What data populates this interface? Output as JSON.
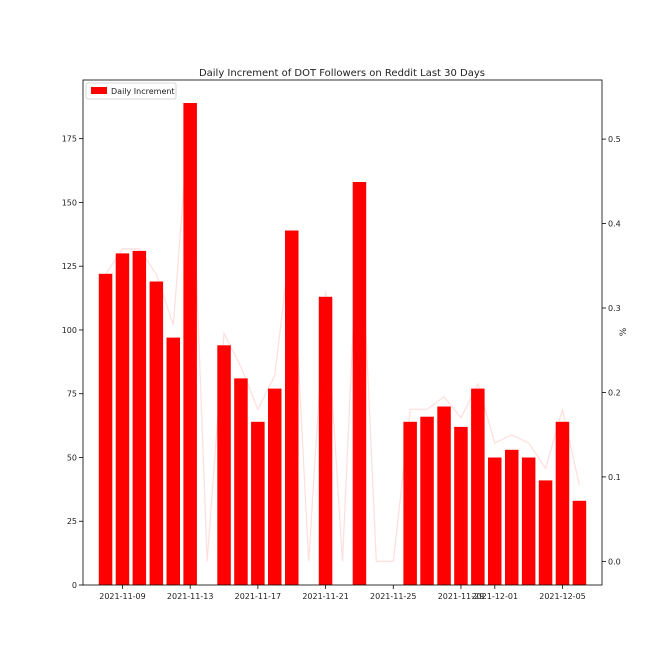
{
  "colors": {
    "bar": "#ff0000",
    "line": "#ffdede",
    "axis": "#000000",
    "text": "#222222"
  },
  "chart_data": {
    "type": "bar",
    "title": "Daily Increment of DOT Followers on Reddit Last 30 Days",
    "xlabel": "",
    "ylabel": "",
    "y2label": "%",
    "legend": {
      "position": "top-left",
      "entries": [
        "Daily Increment"
      ]
    },
    "grid": false,
    "xlim": [
      "2021-11-06T16:00",
      "2021-12-07T08:00"
    ],
    "ylim": [
      0,
      198
    ],
    "y2lim": [
      -0.028,
      0.57
    ],
    "x_tick_labels": [
      "2021-11-09",
      "2021-11-13",
      "2021-11-17",
      "2021-11-21",
      "2021-11-25",
      "2021-11-29",
      "2021-12-01",
      "2021-12-05"
    ],
    "x_ticks": [
      "2021-11-09",
      "2021-11-13",
      "2021-11-17",
      "2021-11-21",
      "2021-11-25",
      "2021-11-29",
      "2021-12-01",
      "2021-12-05"
    ],
    "y_ticks": [
      0,
      25,
      50,
      75,
      100,
      125,
      150,
      175
    ],
    "y2_ticks": [
      0.0,
      0.1,
      0.2,
      0.3,
      0.4,
      0.5
    ],
    "y2_tick_labels": [
      "0.0",
      "0.1",
      "0.2",
      "0.3",
      "0.4",
      "0.5"
    ],
    "series": [
      {
        "name": "Daily Increment",
        "type": "bar",
        "axis": "left",
        "points": [
          {
            "x": "2021-11-08",
            "y": 122
          },
          {
            "x": "2021-11-09",
            "y": 130
          },
          {
            "x": "2021-11-10",
            "y": 131
          },
          {
            "x": "2021-11-11",
            "y": 119
          },
          {
            "x": "2021-11-12",
            "y": 97
          },
          {
            "x": "2021-11-13",
            "y": 189
          },
          {
            "x": "2021-11-14",
            "y": 0
          },
          {
            "x": "2021-11-15",
            "y": 94
          },
          {
            "x": "2021-11-16",
            "y": 81
          },
          {
            "x": "2021-11-17",
            "y": 64
          },
          {
            "x": "2021-11-18",
            "y": 77
          },
          {
            "x": "2021-11-19",
            "y": 139
          },
          {
            "x": "2021-11-20",
            "y": 0
          },
          {
            "x": "2021-11-21",
            "y": 113
          },
          {
            "x": "2021-11-22",
            "y": 0
          },
          {
            "x": "2021-11-23",
            "y": 158
          },
          {
            "x": "2021-11-24",
            "y": 0
          },
          {
            "x": "2021-11-25",
            "y": 0
          },
          {
            "x": "2021-11-26",
            "y": 64
          },
          {
            "x": "2021-11-27",
            "y": 66
          },
          {
            "x": "2021-11-28",
            "y": 70
          },
          {
            "x": "2021-11-29",
            "y": 62
          },
          {
            "x": "2021-11-30",
            "y": 77
          },
          {
            "x": "2021-12-01",
            "y": 50
          },
          {
            "x": "2021-12-02",
            "y": 53
          },
          {
            "x": "2021-12-03",
            "y": 50
          },
          {
            "x": "2021-12-04",
            "y": 41
          },
          {
            "x": "2021-12-05",
            "y": 64
          },
          {
            "x": "2021-12-06",
            "y": 33
          }
        ]
      },
      {
        "name": "",
        "type": "line",
        "axis": "right",
        "points": [
          {
            "x": "2021-11-08",
            "y": 0.34
          },
          {
            "x": "2021-11-09",
            "y": 0.37
          },
          {
            "x": "2021-11-10",
            "y": 0.37
          },
          {
            "x": "2021-11-11",
            "y": 0.34
          },
          {
            "x": "2021-11-12",
            "y": 0.28
          },
          {
            "x": "2021-11-13",
            "y": 0.54
          },
          {
            "x": "2021-11-14",
            "y": 0.0
          },
          {
            "x": "2021-11-15",
            "y": 0.27
          },
          {
            "x": "2021-11-16",
            "y": 0.23
          },
          {
            "x": "2021-11-17",
            "y": 0.18
          },
          {
            "x": "2021-11-18",
            "y": 0.22
          },
          {
            "x": "2021-11-19",
            "y": 0.39
          },
          {
            "x": "2021-11-20",
            "y": 0.0
          },
          {
            "x": "2021-11-21",
            "y": 0.32
          },
          {
            "x": "2021-11-22",
            "y": 0.0
          },
          {
            "x": "2021-11-23",
            "y": 0.44
          },
          {
            "x": "2021-11-24",
            "y": 0.0
          },
          {
            "x": "2021-11-25",
            "y": 0.0
          },
          {
            "x": "2021-11-26",
            "y": 0.18
          },
          {
            "x": "2021-11-27",
            "y": 0.18
          },
          {
            "x": "2021-11-28",
            "y": 0.195
          },
          {
            "x": "2021-11-29",
            "y": 0.17
          },
          {
            "x": "2021-11-30",
            "y": 0.21
          },
          {
            "x": "2021-12-01",
            "y": 0.14
          },
          {
            "x": "2021-12-02",
            "y": 0.15
          },
          {
            "x": "2021-12-03",
            "y": 0.14
          },
          {
            "x": "2021-12-04",
            "y": 0.11
          },
          {
            "x": "2021-12-05",
            "y": 0.18
          },
          {
            "x": "2021-12-06",
            "y": 0.09
          }
        ]
      }
    ]
  }
}
